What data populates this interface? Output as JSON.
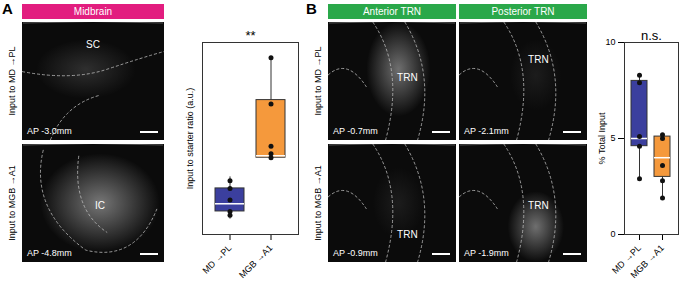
{
  "figure": {
    "panels": [
      {
        "letter": "A",
        "headers": [
          {
            "text": "Midbrain",
            "color": "#e21d7f"
          }
        ],
        "row_labels": [
          "Input to MD →PL",
          "Input to MGB →A1"
        ],
        "images": [
          [
            {
              "region": "SC",
              "ap": "AP -3.0mm"
            }
          ],
          [
            {
              "region": "IC",
              "ap": "AP -4.8mm"
            }
          ]
        ]
      },
      {
        "letter": "B",
        "headers": [
          {
            "text": "Anterior TRN",
            "color": "#2aa84a"
          },
          {
            "text": "Posterior TRN",
            "color": "#2aa84a"
          }
        ],
        "row_labels": [
          "Input to MD →PL",
          "Input to MGB →A1"
        ],
        "images": [
          [
            {
              "region": "TRN",
              "ap": "AP -0.7mm"
            },
            {
              "region": "TRN",
              "ap": "AP -2.1mm"
            }
          ],
          [
            {
              "region": "TRN",
              "ap": "AP -0.9mm"
            },
            {
              "region": "TRN",
              "ap": "AP -1.9mm"
            }
          ]
        ]
      }
    ]
  },
  "chart_data": [
    {
      "type": "box",
      "y_label": "Input to starter ratio (a.u.)",
      "annotation": "**",
      "categories": [
        "MD →PL",
        "MGB →A1"
      ],
      "colors": [
        "#3b3f9e",
        "#f5993c"
      ],
      "ylim": [
        0,
        5
      ],
      "tick_labels": "x",
      "boxes": [
        {
          "q1": 0.6,
          "median": 0.8,
          "q3": 1.2,
          "whisker_low": 0.4,
          "whisker_high": 1.5,
          "points": [
            0.5,
            0.6,
            0.9,
            1.2,
            1.4
          ]
        },
        {
          "q1": 2.0,
          "median": 2.05,
          "q3": 3.5,
          "whisker_low": 1.95,
          "whisker_high": 4.6,
          "points": [
            2.0,
            2.1,
            2.3,
            3.4,
            4.6
          ]
        }
      ]
    },
    {
      "type": "box",
      "y_label": "% Total Input",
      "annotation": "n.s.",
      "categories": [
        "MD →PL",
        "MGB →A1"
      ],
      "colors": [
        "#3b3f9e",
        "#f5993c"
      ],
      "ylim": [
        0,
        10
      ],
      "yticks": [
        0,
        5,
        10
      ],
      "boxes": [
        {
          "q1": 4.6,
          "median": 5.0,
          "q3": 8.0,
          "whisker_low": 2.9,
          "whisker_high": 8.3,
          "points": [
            2.9,
            4.6,
            5.1,
            7.9,
            8.3
          ]
        },
        {
          "q1": 3.0,
          "median": 4.0,
          "q3": 5.1,
          "whisker_low": 1.9,
          "whisker_high": 5.2,
          "points": [
            1.9,
            2.8,
            3.6,
            5.0,
            5.2
          ]
        }
      ]
    }
  ]
}
